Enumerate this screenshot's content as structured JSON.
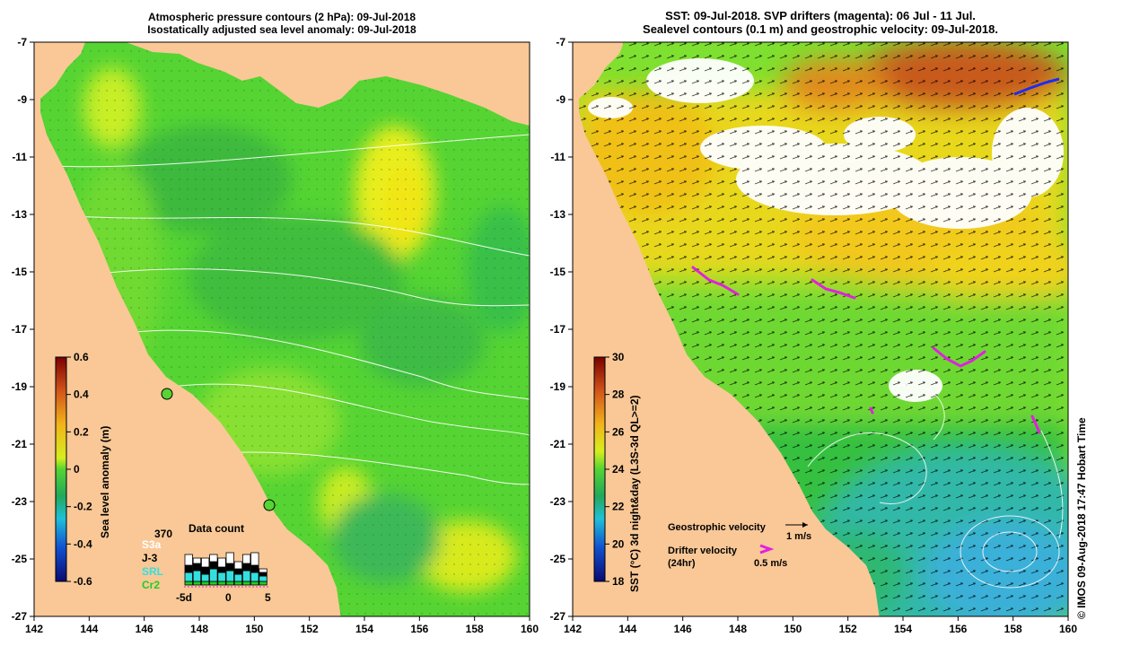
{
  "left_panel": {
    "title_line1": "Atmospheric pressure contours (2 hPa): 09-Jul-2018",
    "title_line2": "Isostatically adjusted sea level anomaly: 09-Jul-2018",
    "lat_ticks": [
      "-7",
      "-9",
      "-11",
      "-13",
      "-15",
      "-17",
      "-19",
      "-21",
      "-23",
      "-25",
      "-27"
    ],
    "lon_ticks": [
      "142",
      "144",
      "146",
      "148",
      "150",
      "152",
      "154",
      "156",
      "158",
      "160"
    ],
    "colorbar": {
      "label": "Sea level anomaly (m)",
      "ticks": [
        "0.6",
        "0.4",
        "0.2",
        "0",
        "-0.2",
        "-0.4",
        "-0.6"
      ]
    },
    "data_count": {
      "title": "Data count",
      "total": "370",
      "sources": [
        {
          "name": "S3a",
          "color": "#ffffff"
        },
        {
          "name": "J-3",
          "color": "#000000"
        },
        {
          "name": "SRL",
          "color": "#33e0e0"
        },
        {
          "name": "Cr2",
          "color": "#22cc22"
        }
      ],
      "axis_ticks": [
        "-5d",
        "0",
        "5"
      ]
    }
  },
  "right_panel": {
    "title_line1": "SST: 09-Jul-2018. SVP drifters (magenta): 06 Jul - 11 Jul.",
    "title_line2": "Sealevel contours (0.1 m) and geostrophic velocity: 09-Jul-2018.",
    "lat_ticks": [
      "-7",
      "-9",
      "-11",
      "-13",
      "-15",
      "-17",
      "-19",
      "-21",
      "-23",
      "-25",
      "-27"
    ],
    "lon_ticks": [
      "142",
      "144",
      "146",
      "148",
      "150",
      "152",
      "154",
      "156",
      "158",
      "160"
    ],
    "colorbar": {
      "label": "SST (°C) 3d night&day (L3S-3d QL>=2)",
      "ticks": [
        "30",
        "28",
        "26",
        "24",
        "22",
        "20",
        "18"
      ]
    },
    "legend": {
      "geostrophic_label": "Geostrophic velocity",
      "geostrophic_scale": "1 m/s",
      "drifter_label": "Drifter velocity",
      "drifter_sub": "(24hr)",
      "drifter_scale": "0.5 m/s"
    }
  },
  "credit": "© IMOS 09-Aug-2018 17:47 Hobart Time",
  "colors": {
    "land": "#f9c896",
    "sea_green": "#55d433",
    "sea_yellow": "#d6ee1e",
    "contour": "#ffffff",
    "coast": "#38e0e0",
    "drifter": "#e020e0"
  }
}
